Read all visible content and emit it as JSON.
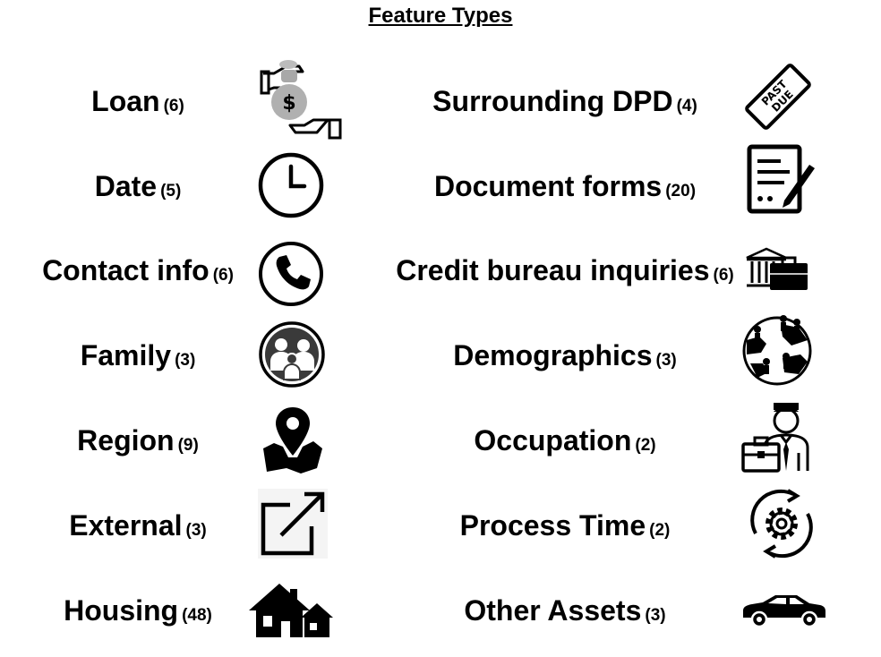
{
  "title": "Feature Types",
  "left": [
    {
      "name": "Loan",
      "count": "(6)",
      "icon": "money-bag-hands-icon"
    },
    {
      "name": "Date",
      "count": "(5)",
      "icon": "clock-icon"
    },
    {
      "name": "Contact info",
      "count": "(6)",
      "icon": "phone-icon"
    },
    {
      "name": "Family",
      "count": "(3)",
      "icon": "family-icon"
    },
    {
      "name": "Region",
      "count": "(9)",
      "icon": "map-pin-icon"
    },
    {
      "name": "External",
      "count": "(3)",
      "icon": "external-link-icon"
    },
    {
      "name": "Housing",
      "count": "(48)",
      "icon": "houses-icon"
    }
  ],
  "right": [
    {
      "name": "Surrounding DPD",
      "count": "(4)",
      "icon": "past-due-stamp-icon"
    },
    {
      "name": "Document forms",
      "count": "(20)",
      "icon": "document-pen-icon"
    },
    {
      "name": "Credit bureau inquiries",
      "count": "(6)",
      "icon": "bank-briefcase-icon"
    },
    {
      "name": "Demographics",
      "count": "(3)",
      "icon": "people-globe-icon"
    },
    {
      "name": "Occupation",
      "count": "(2)",
      "icon": "businessman-icon"
    },
    {
      "name": "Process Time",
      "count": "(2)",
      "icon": "gear-cycle-icon"
    },
    {
      "name": "Other Assets",
      "count": "(3)",
      "icon": "car-icon"
    }
  ],
  "past_due_text": [
    "PAST",
    "DUE"
  ]
}
